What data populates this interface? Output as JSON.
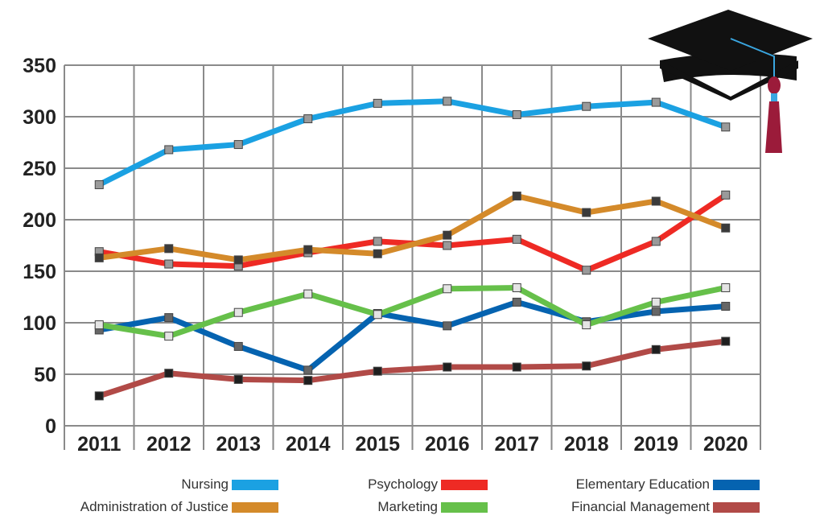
{
  "chart_data": {
    "type": "line",
    "categories": [
      "2011",
      "2012",
      "2013",
      "2014",
      "2015",
      "2016",
      "2017",
      "2018",
      "2019",
      "2020"
    ],
    "ylim": [
      0,
      350
    ],
    "yticks": [
      0,
      50,
      100,
      150,
      200,
      250,
      300,
      350
    ],
    "grid": true,
    "legend_placement": "bottom",
    "series": [
      {
        "name": "Nursing",
        "color": "#1ba1e2",
        "values": [
          234,
          268,
          273,
          298,
          313,
          315,
          302,
          310,
          314,
          290
        ]
      },
      {
        "name": "Psychology",
        "color": "#ee2a24",
        "values": [
          169,
          157,
          155,
          168,
          179,
          175,
          181,
          151,
          179,
          224
        ]
      },
      {
        "name": "Elementary Education",
        "color": "#0563b0",
        "values": [
          93,
          105,
          77,
          54,
          109,
          97,
          120,
          101,
          111,
          116
        ]
      },
      {
        "name": "Administration of Justice",
        "color": "#d48a2a",
        "values": [
          163,
          172,
          161,
          171,
          167,
          185,
          223,
          207,
          218,
          192
        ]
      },
      {
        "name": "Marketing",
        "color": "#66c04a",
        "values": [
          98,
          87,
          110,
          128,
          108,
          133,
          134,
          98,
          120,
          134
        ]
      },
      {
        "name": "Financial Management",
        "color": "#b14a47",
        "values": [
          29,
          51,
          45,
          44,
          53,
          57,
          57,
          58,
          74,
          82
        ]
      }
    ]
  },
  "decoration": {
    "icon": "graduation-cap-icon",
    "cap_color": "#111111",
    "tassel_color": "#9b1b3a",
    "cord_color": "#3aa6e0"
  }
}
